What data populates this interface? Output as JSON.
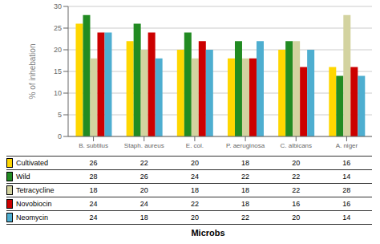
{
  "chart_data": {
    "type": "bar",
    "categories": [
      "B. subtilus",
      "Staph. aureus",
      "E. col.",
      "P. aeruginosa",
      "C. albicans",
      "A. niger"
    ],
    "series": [
      {
        "name": "Cultivated",
        "color": "#FFD700",
        "values": [
          26,
          22,
          20,
          18,
          20,
          16
        ]
      },
      {
        "name": "Wild",
        "color": "#228B22",
        "values": [
          28,
          26,
          24,
          22,
          22,
          14
        ]
      },
      {
        "name": "Tetracycline",
        "color": "#D3D3A0",
        "values": [
          18,
          20,
          18,
          18,
          22,
          28
        ]
      },
      {
        "name": "Novobiocin",
        "color": "#CC0000",
        "values": [
          24,
          24,
          22,
          18,
          16,
          16
        ]
      },
      {
        "name": "Neomycin",
        "color": "#4EAED0",
        "values": [
          24,
          18,
          20,
          22,
          20,
          14
        ]
      }
    ],
    "ylabel": "% of inhebation",
    "xlabel": "Microbs",
    "ylim": [
      0,
      30
    ],
    "yticks": [
      0,
      5,
      10,
      15,
      20,
      25,
      30
    ],
    "grid": true
  }
}
